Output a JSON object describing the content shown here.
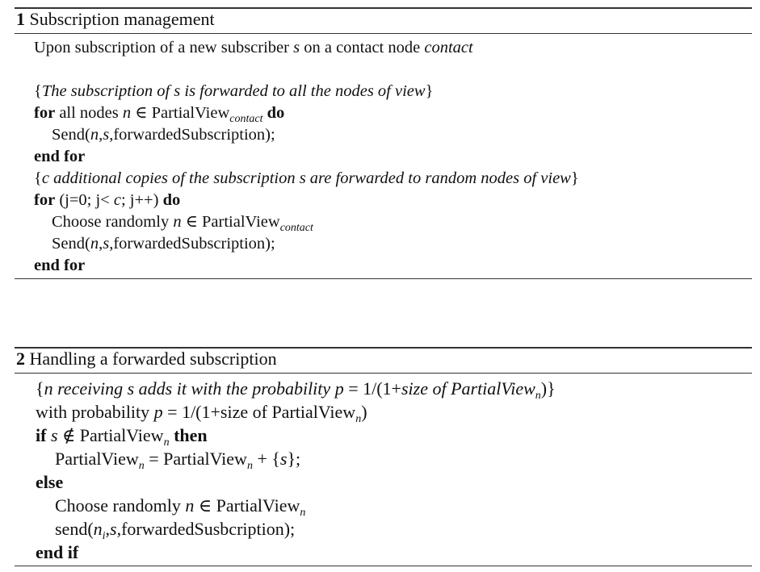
{
  "algorithm1": {
    "number": "1",
    "title": "Subscription management",
    "lines": {
      "l0": {
        "a": "Upon subscription of a new subscriber ",
        "b": "s",
        "c": " on a contact node ",
        "d": "contact"
      },
      "l1": {
        "a": "{",
        "b": "The subscription of s is forwarded to all the nodes of view",
        "c": "}"
      },
      "l2": {
        "kw1": "for",
        "a": " all nodes ",
        "n": "n",
        "in": " ∈ PartialView",
        "sub": "contact",
        "kw2": " do"
      },
      "l3": {
        "a": "Send(",
        "n": "n",
        "c1": ",",
        "s": "s",
        "b": ",forwardedSubscription);"
      },
      "l4": {
        "kw": "end for"
      },
      "l5": {
        "a": "{",
        "b": "c additional copies of the subscription s are forwarded to random nodes of view",
        "c": "}"
      },
      "l6": {
        "kw1": "for",
        "a": " (j=0; j< ",
        "c": "c",
        "b": "; j++) ",
        "kw2": "do"
      },
      "l7": {
        "a": "Choose randomly ",
        "n": "n",
        "in": " ∈ PartialView",
        "sub": "contact"
      },
      "l8": {
        "a": "Send(",
        "n": "n",
        "c1": ",",
        "s": "s",
        "b": ",forwardedSubscription);"
      },
      "l9": {
        "kw": "end for"
      }
    }
  },
  "algorithm2": {
    "number": "2",
    "title": "Handling a forwarded subscription",
    "lines": {
      "l0": {
        "a": "{",
        "b": "n receiving s adds it with the probability ",
        "p": "p",
        "eq": " = 1/(1+",
        "c": "size of PartialView",
        "sub": "n",
        "d": ")}"
      },
      "l1": {
        "a": "with probability ",
        "p": "p",
        "b": " = 1/(1+size of PartialView",
        "sub": "n",
        "c": ")"
      },
      "l2": {
        "kw1": "if",
        "s": " s",
        "a": " ∉ PartialView",
        "sub": "n",
        "kw2": " then"
      },
      "l3": {
        "a": "PartialView",
        "sub1": "n",
        "b": " = PartialView",
        "sub2": "n",
        "c": " + {",
        "s": "s",
        "d": "};"
      },
      "l4": {
        "kw": "else"
      },
      "l5": {
        "a": "Choose randomly ",
        "n": "n",
        "in": " ∈ PartialView",
        "sub": "n"
      },
      "l6": {
        "a": "send(",
        "n": "n",
        "sub": "i",
        "c1": ",",
        "s": "s",
        "b": ",forwardedSusbcription);"
      },
      "l7": {
        "kw": "end if"
      }
    }
  }
}
